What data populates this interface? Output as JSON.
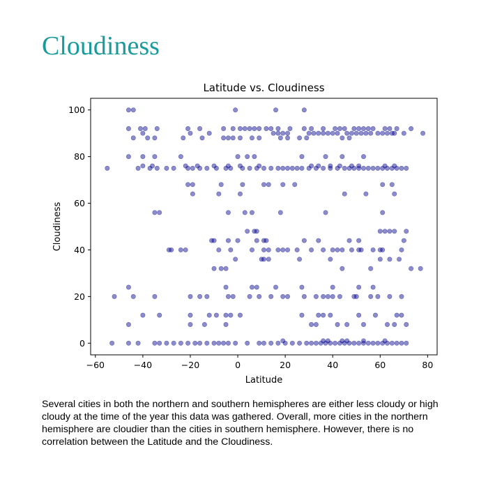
{
  "page": {
    "title": "Cloudiness",
    "description": "Several cities in both the northern and southern hemispheres are either less cloudy or high cloudy at the time of the year this data was gathered. Overall, more cities in the northern hemisphere are cloudier than the cities in southern hemisphere. However, there is no correlation between the Latitude and the Cloudiness."
  },
  "colors": {
    "title": "#1a9a9a",
    "marker": "#00008b"
  },
  "chart_data": {
    "type": "scatter",
    "title": "Latitude vs. Cloudiness",
    "xlabel": "Latitude",
    "ylabel": "Cloudiness",
    "xlim": [
      -62,
      84
    ],
    "ylim": [
      -5,
      105
    ],
    "xticks": [
      -60,
      -40,
      -20,
      0,
      20,
      40,
      60,
      80
    ],
    "yticks": [
      0,
      20,
      40,
      60,
      80,
      100
    ],
    "xtick_labels": [
      "−60",
      "−40",
      "−20",
      "0",
      "20",
      "40",
      "60",
      "80"
    ],
    "ytick_labels": [
      "0",
      "20",
      "40",
      "60",
      "80",
      "100"
    ],
    "marker_alpha": 0.45,
    "grid": false,
    "points": [
      [
        -46,
        100
      ],
      [
        -44,
        100
      ],
      [
        -1,
        100
      ],
      [
        16,
        100
      ],
      [
        28,
        100
      ],
      [
        -46,
        92
      ],
      [
        -41,
        92
      ],
      [
        -39,
        92
      ],
      [
        -34,
        92
      ],
      [
        -21,
        92
      ],
      [
        -16,
        92
      ],
      [
        -6,
        92
      ],
      [
        -2,
        92
      ],
      [
        1,
        92
      ],
      [
        3,
        92
      ],
      [
        5,
        92
      ],
      [
        7,
        92
      ],
      [
        9,
        92
      ],
      [
        12,
        92
      ],
      [
        14,
        92
      ],
      [
        17,
        92
      ],
      [
        22,
        92
      ],
      [
        28,
        92
      ],
      [
        31,
        92
      ],
      [
        36,
        92
      ],
      [
        41,
        92
      ],
      [
        43,
        92
      ],
      [
        45,
        92
      ],
      [
        49,
        92
      ],
      [
        51,
        92
      ],
      [
        53,
        92
      ],
      [
        55,
        92
      ],
      [
        57,
        92
      ],
      [
        62,
        92
      ],
      [
        64,
        92
      ],
      [
        67,
        92
      ],
      [
        73,
        92
      ],
      [
        -44,
        88
      ],
      [
        -38,
        88
      ],
      [
        -35,
        88
      ],
      [
        -23,
        88
      ],
      [
        -15,
        88
      ],
      [
        -6,
        88
      ],
      [
        -4,
        88
      ],
      [
        -2,
        88
      ],
      [
        1,
        88
      ],
      [
        6,
        88
      ],
      [
        9,
        88
      ],
      [
        18,
        88
      ],
      [
        21,
        88
      ],
      [
        26,
        88
      ],
      [
        29,
        88
      ],
      [
        44,
        88
      ],
      [
        47,
        88
      ],
      [
        -40,
        90
      ],
      [
        -20,
        90
      ],
      [
        -12,
        90
      ],
      [
        15,
        90
      ],
      [
        17,
        90
      ],
      [
        19,
        90
      ],
      [
        21,
        90
      ],
      [
        30,
        90
      ],
      [
        32,
        90
      ],
      [
        34,
        90
      ],
      [
        36,
        90
      ],
      [
        38,
        90
      ],
      [
        40,
        90
      ],
      [
        42,
        90
      ],
      [
        46,
        90
      ],
      [
        48,
        90
      ],
      [
        50,
        90
      ],
      [
        52,
        90
      ],
      [
        54,
        90
      ],
      [
        56,
        90
      ],
      [
        59,
        90
      ],
      [
        61,
        90
      ],
      [
        63,
        90
      ],
      [
        65,
        90
      ],
      [
        66,
        90
      ],
      [
        70,
        90
      ],
      [
        78,
        90
      ],
      [
        -46,
        80
      ],
      [
        -40,
        80
      ],
      [
        -35,
        80
      ],
      [
        -24,
        80
      ],
      [
        0,
        80
      ],
      [
        4,
        80
      ],
      [
        7,
        80
      ],
      [
        27,
        80
      ],
      [
        37,
        80
      ],
      [
        44,
        80
      ],
      [
        53,
        80
      ],
      [
        -55,
        75
      ],
      [
        -42,
        75
      ],
      [
        -37,
        75
      ],
      [
        -34,
        75
      ],
      [
        -30,
        75
      ],
      [
        -27,
        75
      ],
      [
        -21,
        75
      ],
      [
        -19,
        75
      ],
      [
        -16,
        75
      ],
      [
        -13,
        75
      ],
      [
        -9,
        75
      ],
      [
        -5,
        75
      ],
      [
        -3,
        75
      ],
      [
        2,
        75
      ],
      [
        5,
        75
      ],
      [
        8,
        75
      ],
      [
        11,
        75
      ],
      [
        14,
        75
      ],
      [
        17,
        75
      ],
      [
        19,
        75
      ],
      [
        21,
        75
      ],
      [
        23,
        75
      ],
      [
        25,
        75
      ],
      [
        27,
        75
      ],
      [
        30,
        75
      ],
      [
        33,
        75
      ],
      [
        36,
        75
      ],
      [
        39,
        75
      ],
      [
        42,
        75
      ],
      [
        45,
        75
      ],
      [
        47,
        75
      ],
      [
        49,
        75
      ],
      [
        51,
        75
      ],
      [
        53,
        75
      ],
      [
        55,
        75
      ],
      [
        57,
        75
      ],
      [
        59,
        75
      ],
      [
        61,
        75
      ],
      [
        63,
        75
      ],
      [
        65,
        75
      ],
      [
        67,
        75
      ],
      [
        69,
        75
      ],
      [
        71,
        75
      ],
      [
        -40,
        76
      ],
      [
        -36,
        76
      ],
      [
        -22,
        76
      ],
      [
        -17,
        76
      ],
      [
        -10,
        76
      ],
      [
        -4,
        76
      ],
      [
        1,
        76
      ],
      [
        9,
        76
      ],
      [
        31,
        76
      ],
      [
        34,
        76
      ],
      [
        39,
        76
      ],
      [
        43,
        76
      ],
      [
        48,
        76
      ],
      [
        51,
        76
      ],
      [
        62,
        76
      ],
      [
        66,
        76
      ],
      [
        -21,
        68
      ],
      [
        -19,
        68
      ],
      [
        -7,
        68
      ],
      [
        2,
        68
      ],
      [
        11,
        68
      ],
      [
        13,
        68
      ],
      [
        19,
        68
      ],
      [
        24,
        68
      ],
      [
        61,
        68
      ],
      [
        65,
        68
      ],
      [
        -19,
        64
      ],
      [
        -8,
        64
      ],
      [
        1,
        64
      ],
      [
        45,
        64
      ],
      [
        54,
        64
      ],
      [
        66,
        64
      ],
      [
        -35,
        56
      ],
      [
        -33,
        56
      ],
      [
        -4,
        56
      ],
      [
        3,
        56
      ],
      [
        6,
        56
      ],
      [
        18,
        56
      ],
      [
        37,
        56
      ],
      [
        61,
        56
      ],
      [
        4,
        48
      ],
      [
        7,
        48
      ],
      [
        8,
        48
      ],
      [
        60,
        48
      ],
      [
        62,
        48
      ],
      [
        64,
        48
      ],
      [
        66,
        48
      ],
      [
        71,
        48
      ],
      [
        -11,
        44
      ],
      [
        -10,
        44
      ],
      [
        -4,
        44
      ],
      [
        0,
        44
      ],
      [
        8,
        44
      ],
      [
        11,
        44
      ],
      [
        12,
        44
      ],
      [
        28,
        44
      ],
      [
        34,
        44
      ],
      [
        47,
        44
      ],
      [
        51,
        44
      ],
      [
        70,
        44
      ],
      [
        -29,
        40
      ],
      [
        -28,
        40
      ],
      [
        -24,
        40
      ],
      [
        -22,
        40
      ],
      [
        -8,
        40
      ],
      [
        -3,
        40
      ],
      [
        6,
        40
      ],
      [
        11,
        40
      ],
      [
        13,
        40
      ],
      [
        17,
        40
      ],
      [
        19,
        40
      ],
      [
        21,
        40
      ],
      [
        25,
        40
      ],
      [
        31,
        40
      ],
      [
        36,
        40
      ],
      [
        40,
        40
      ],
      [
        42,
        40
      ],
      [
        44,
        40
      ],
      [
        48,
        40
      ],
      [
        51,
        40
      ],
      [
        52,
        40
      ],
      [
        57,
        40
      ],
      [
        60,
        40
      ],
      [
        61,
        40
      ],
      [
        69,
        40
      ],
      [
        -1,
        36
      ],
      [
        10,
        36
      ],
      [
        11,
        36
      ],
      [
        13,
        36
      ],
      [
        26,
        36
      ],
      [
        39,
        36
      ],
      [
        60,
        36
      ],
      [
        64,
        36
      ],
      [
        68,
        36
      ],
      [
        -10,
        32
      ],
      [
        -7,
        32
      ],
      [
        -5,
        32
      ],
      [
        44,
        32
      ],
      [
        56,
        32
      ],
      [
        73,
        32
      ],
      [
        77,
        32
      ],
      [
        -46,
        24
      ],
      [
        -5,
        24
      ],
      [
        6,
        24
      ],
      [
        8,
        24
      ],
      [
        16,
        24
      ],
      [
        27,
        24
      ],
      [
        40,
        24
      ],
      [
        51,
        24
      ],
      [
        57,
        24
      ],
      [
        -52,
        20
      ],
      [
        -44,
        20
      ],
      [
        -35,
        20
      ],
      [
        -20,
        20
      ],
      [
        -16,
        20
      ],
      [
        -13,
        20
      ],
      [
        -4,
        20
      ],
      [
        -2,
        20
      ],
      [
        5,
        20
      ],
      [
        9,
        20
      ],
      [
        14,
        20
      ],
      [
        19,
        20
      ],
      [
        21,
        20
      ],
      [
        28,
        20
      ],
      [
        33,
        20
      ],
      [
        36,
        20
      ],
      [
        38,
        20
      ],
      [
        40,
        20
      ],
      [
        43,
        20
      ],
      [
        49,
        20
      ],
      [
        50,
        20
      ],
      [
        56,
        20
      ],
      [
        59,
        20
      ],
      [
        64,
        20
      ],
      [
        69,
        20
      ],
      [
        -40,
        12
      ],
      [
        -33,
        12
      ],
      [
        -20,
        12
      ],
      [
        -12,
        12
      ],
      [
        -9,
        12
      ],
      [
        -5,
        12
      ],
      [
        -3,
        12
      ],
      [
        1,
        12
      ],
      [
        27,
        12
      ],
      [
        34,
        12
      ],
      [
        36,
        12
      ],
      [
        39,
        12
      ],
      [
        51,
        12
      ],
      [
        58,
        12
      ],
      [
        67,
        12
      ],
      [
        69,
        12
      ],
      [
        -46,
        8
      ],
      [
        -20,
        8
      ],
      [
        -14,
        8
      ],
      [
        -5,
        8
      ],
      [
        31,
        8
      ],
      [
        33,
        8
      ],
      [
        42,
        8
      ],
      [
        46,
        8
      ],
      [
        53,
        8
      ],
      [
        63,
        8
      ],
      [
        66,
        8
      ],
      [
        71,
        8
      ],
      [
        -53,
        0
      ],
      [
        -46,
        0
      ],
      [
        -42,
        0
      ],
      [
        -35,
        0
      ],
      [
        -33,
        0
      ],
      [
        -30,
        0
      ],
      [
        -27,
        0
      ],
      [
        -24,
        0
      ],
      [
        -21,
        0
      ],
      [
        -18,
        0
      ],
      [
        -16,
        0
      ],
      [
        -13,
        0
      ],
      [
        -10,
        0
      ],
      [
        -8,
        0
      ],
      [
        -6,
        0
      ],
      [
        -4,
        0
      ],
      [
        -1,
        0
      ],
      [
        4,
        0
      ],
      [
        9,
        0
      ],
      [
        11,
        0
      ],
      [
        14,
        0
      ],
      [
        17,
        0
      ],
      [
        20,
        0
      ],
      [
        23,
        0
      ],
      [
        26,
        0
      ],
      [
        29,
        0
      ],
      [
        31,
        0
      ],
      [
        33,
        0
      ],
      [
        35,
        0
      ],
      [
        37,
        0
      ],
      [
        39,
        0
      ],
      [
        41,
        0
      ],
      [
        43,
        0
      ],
      [
        45,
        0
      ],
      [
        47,
        0
      ],
      [
        49,
        0
      ],
      [
        51,
        0
      ],
      [
        53,
        0
      ],
      [
        55,
        0
      ],
      [
        57,
        0
      ],
      [
        59,
        0
      ],
      [
        61,
        0
      ],
      [
        63,
        0
      ],
      [
        65,
        0
      ],
      [
        67,
        0
      ],
      [
        69,
        0
      ],
      [
        71,
        0
      ],
      [
        19,
        1
      ],
      [
        36,
        1
      ],
      [
        38,
        1
      ],
      [
        44,
        1
      ],
      [
        46,
        1
      ],
      [
        53,
        1
      ],
      [
        62,
        1
      ]
    ]
  }
}
